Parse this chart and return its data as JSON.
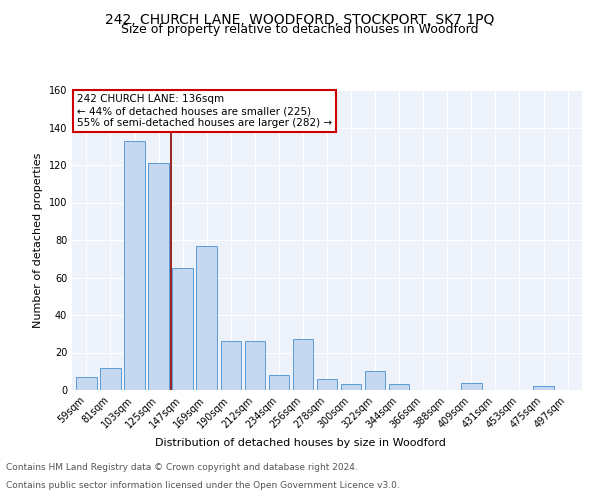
{
  "title": "242, CHURCH LANE, WOODFORD, STOCKPORT, SK7 1PQ",
  "subtitle": "Size of property relative to detached houses in Woodford",
  "xlabel": "Distribution of detached houses by size in Woodford",
  "ylabel": "Number of detached properties",
  "categories": [
    "59sqm",
    "81sqm",
    "103sqm",
    "125sqm",
    "147sqm",
    "169sqm",
    "190sqm",
    "212sqm",
    "234sqm",
    "256sqm",
    "278sqm",
    "300sqm",
    "322sqm",
    "344sqm",
    "366sqm",
    "388sqm",
    "409sqm",
    "431sqm",
    "453sqm",
    "475sqm",
    "497sqm"
  ],
  "values": [
    7,
    12,
    133,
    121,
    65,
    77,
    26,
    26,
    8,
    27,
    6,
    3,
    10,
    3,
    0,
    0,
    4,
    0,
    0,
    2,
    0
  ],
  "bar_color": "#c5d8f0",
  "bar_edge_color": "#5b9bd5",
  "vline_x": 3.5,
  "vline_color": "#8b0000",
  "annotation_text": "242 CHURCH LANE: 136sqm\n← 44% of detached houses are smaller (225)\n55% of semi-detached houses are larger (282) →",
  "annotation_box_color": "#ffffff",
  "annotation_box_edge": "#cc0000",
  "ylim": [
    0,
    160
  ],
  "yticks": [
    0,
    20,
    40,
    60,
    80,
    100,
    120,
    140,
    160
  ],
  "footer_line1": "Contains HM Land Registry data © Crown copyright and database right 2024.",
  "footer_line2": "Contains public sector information licensed under the Open Government Licence v3.0.",
  "plot_bg_color": "#eef2fa",
  "title_fontsize": 10,
  "subtitle_fontsize": 9,
  "axis_label_fontsize": 8,
  "tick_fontsize": 7,
  "annotation_fontsize": 7.5,
  "footer_fontsize": 6.5
}
